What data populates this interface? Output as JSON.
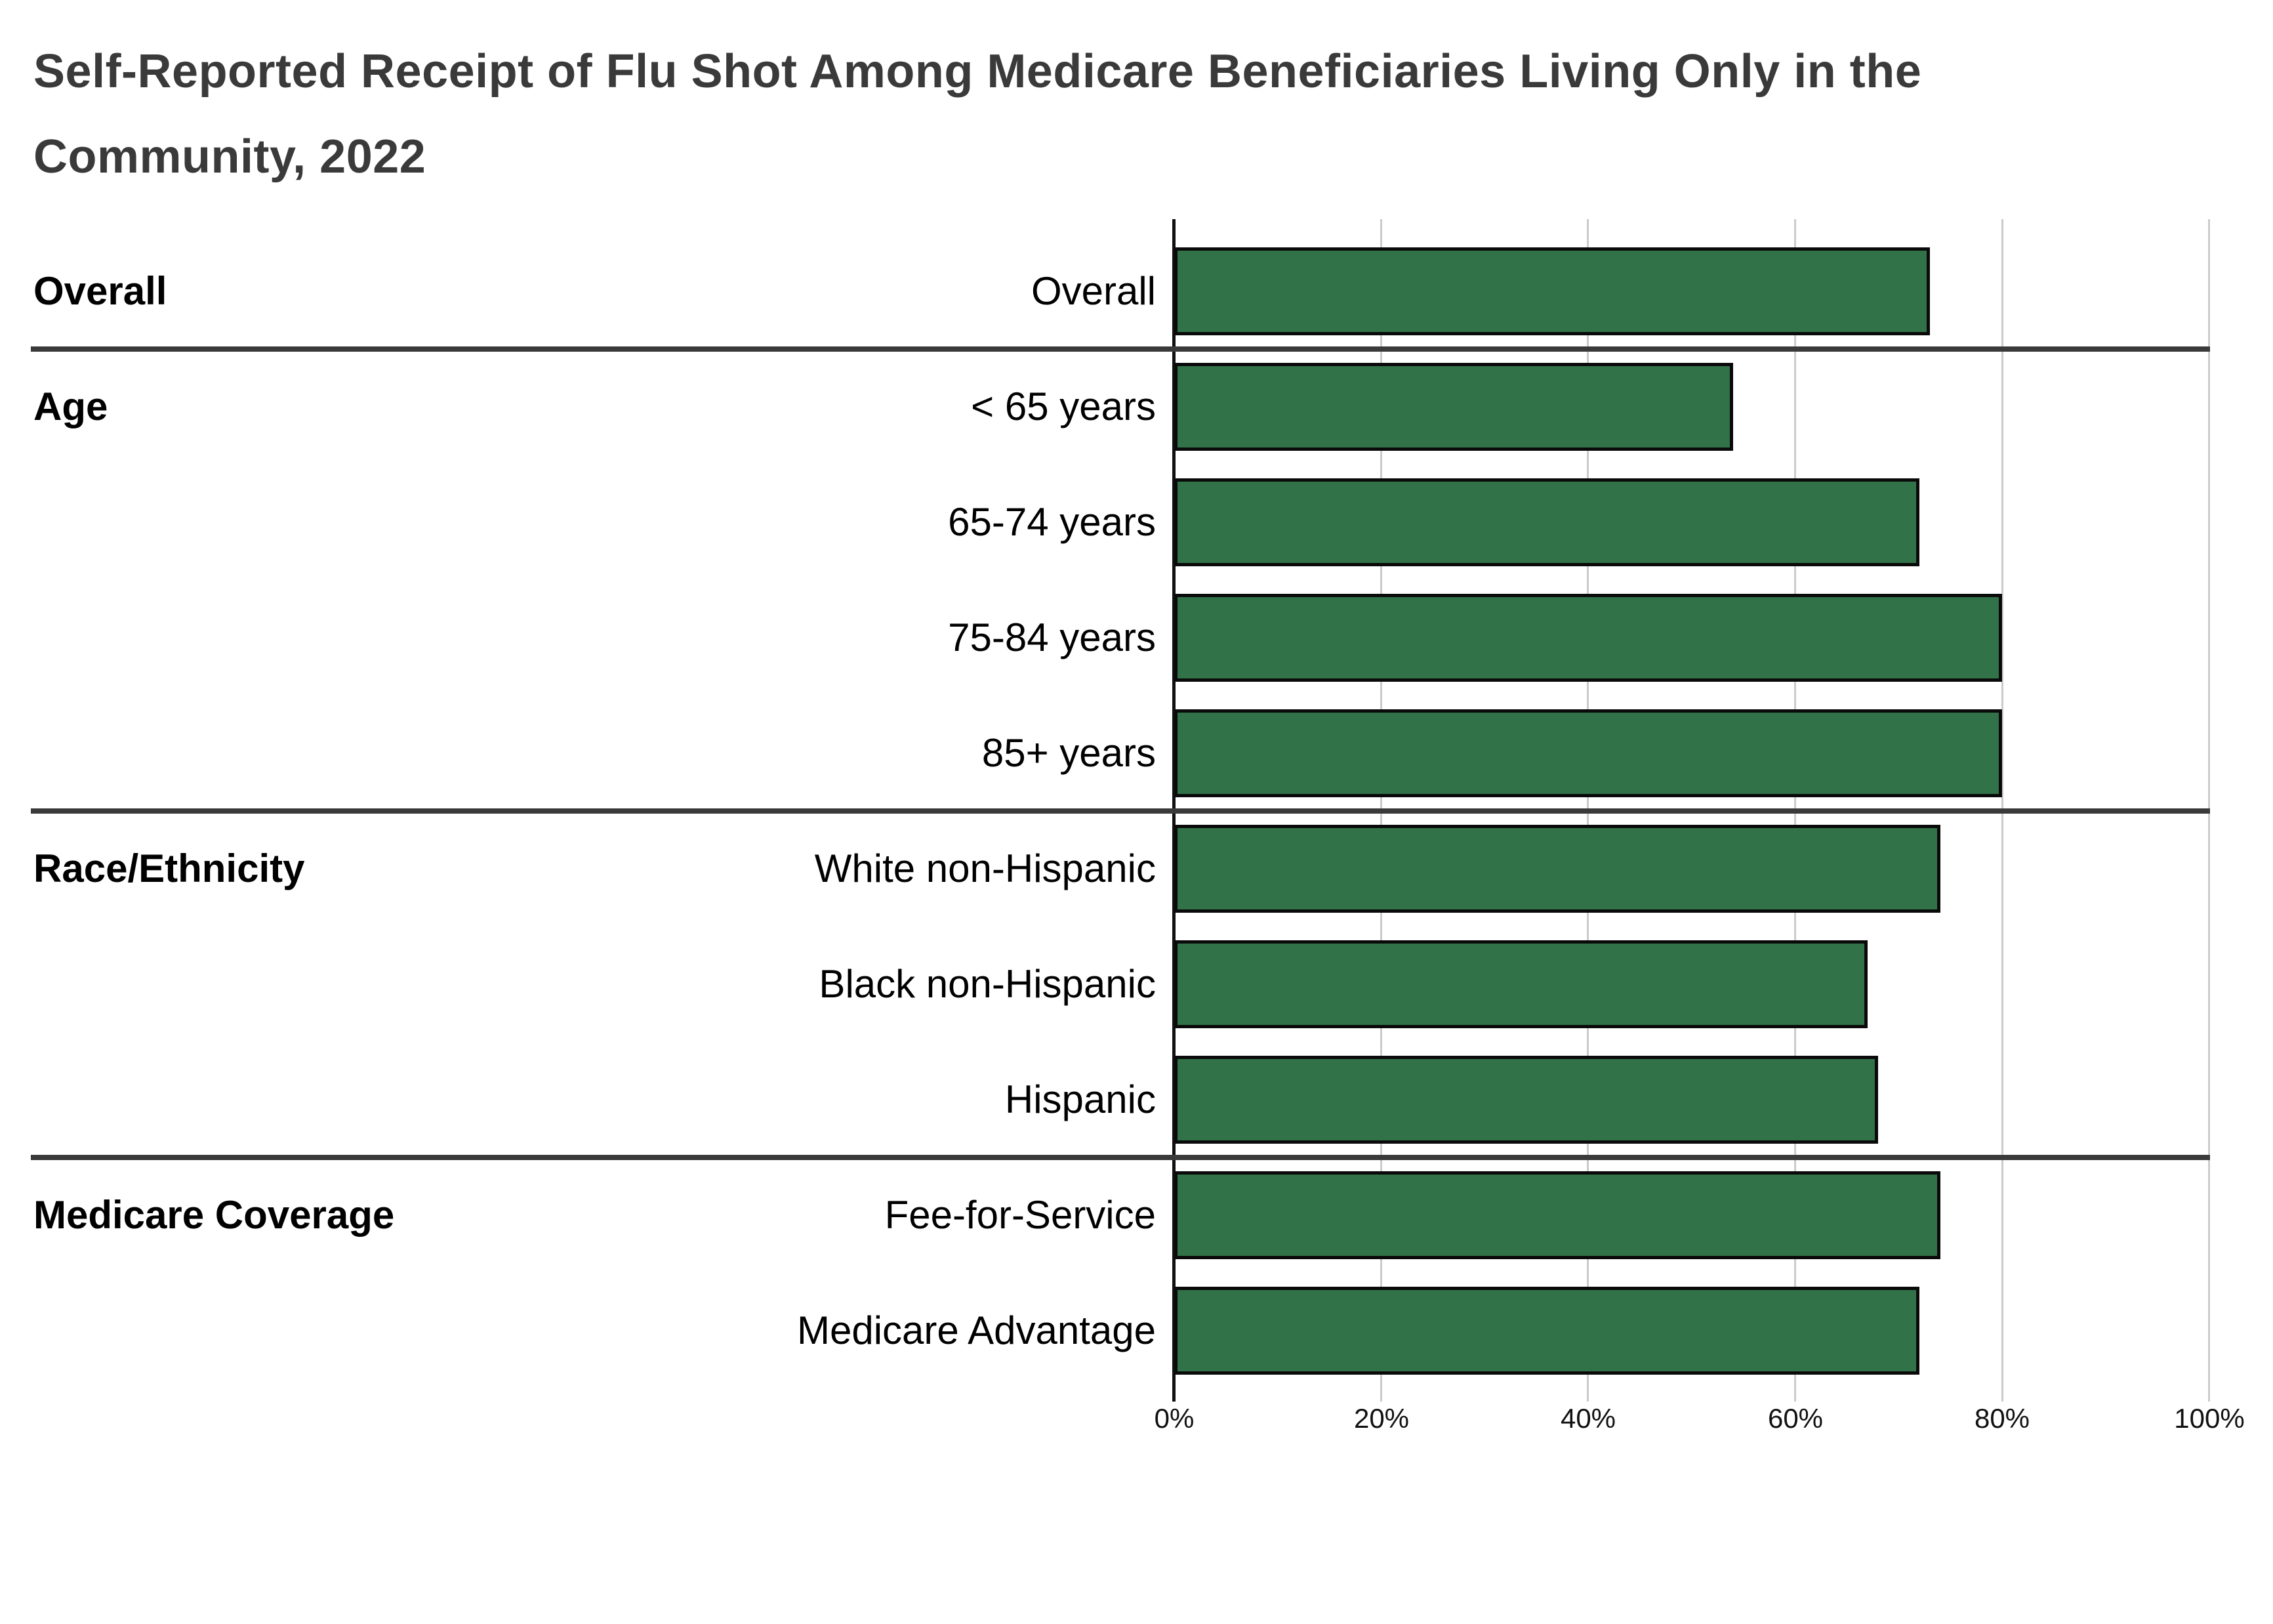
{
  "title": "Self-Reported Receipt of Flu Shot Among Medicare Beneficiaries Living Only in the Community, 2022",
  "title_lines": [
    "Self-Reported Receipt of Flu Shot Among Medicare Beneficiaries Living Only in the",
    "Community, 2022"
  ],
  "colors": {
    "bar_fill": "#327249",
    "bar_border": "#0a0a0a",
    "axis_line": "#111111",
    "gridline": "#cbcbcb",
    "divider": "#3a3a3a",
    "title_text": "#3a3a3a",
    "label_text": "#000000"
  },
  "chart_data": {
    "type": "bar",
    "orientation": "horizontal",
    "title": "Self-Reported Receipt of Flu Shot Among Medicare Beneficiaries Living Only in the Community, 2022",
    "xlabel": "",
    "ylabel": "",
    "unit": "%",
    "xlim": [
      0,
      100
    ],
    "x_ticks": [
      0,
      20,
      40,
      60,
      80,
      100
    ],
    "x_tick_labels": [
      "0%",
      "20%",
      "40%",
      "60%",
      "80%",
      "100%"
    ],
    "grid": "vertical gridlines every 20%",
    "legend": "none",
    "sections": [
      {
        "label": "Overall",
        "categories": [
          "Overall"
        ]
      },
      {
        "label": "Age",
        "categories": [
          "< 65 years",
          "65-74 years",
          "75-84 years",
          "85+ years"
        ]
      },
      {
        "label": "Race/Ethnicity",
        "categories": [
          "White non-Hispanic",
          "Black non-Hispanic",
          "Hispanic"
        ]
      },
      {
        "label": "Medicare Coverage",
        "categories": [
          "Fee-for-Service",
          "Medicare Advantage"
        ]
      }
    ],
    "categories": [
      "Overall",
      "< 65 years",
      "65-74 years",
      "75-84 years",
      "85+ years",
      "White non-Hispanic",
      "Black non-Hispanic",
      "Hispanic",
      "Fee-for-Service",
      "Medicare Advantage"
    ],
    "values": [
      73,
      54,
      72,
      80,
      80,
      74,
      67,
      68,
      74,
      72
    ],
    "rows": [
      {
        "section": "Overall",
        "label": "Overall",
        "value": 73
      },
      {
        "section": "Age",
        "label": "< 65 years",
        "value": 54
      },
      {
        "section": "",
        "label": "65-74 years",
        "value": 72
      },
      {
        "section": "",
        "label": "75-84 years",
        "value": 80
      },
      {
        "section": "",
        "label": "85+ years",
        "value": 80
      },
      {
        "section": "Race/Ethnicity",
        "label": "White non-Hispanic",
        "value": 74
      },
      {
        "section": "",
        "label": "Black non-Hispanic",
        "value": 67
      },
      {
        "section": "",
        "label": "Hispanic",
        "value": 68
      },
      {
        "section": "Medicare Coverage",
        "label": "Fee-for-Service",
        "value": 74
      },
      {
        "section": "",
        "label": "Medicare Advantage",
        "value": 72
      }
    ]
  }
}
